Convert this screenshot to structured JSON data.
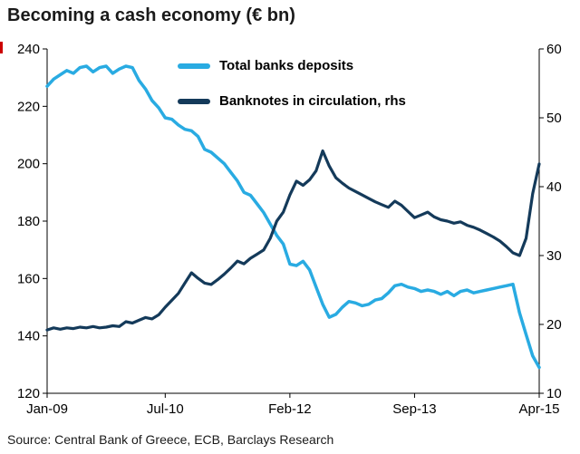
{
  "title": "Becoming a cash economy (€ bn)",
  "source": "Source: Central Bank of Greece, ECB, Barclays Research",
  "colors": {
    "deposits": "#29abe2",
    "banknotes": "#143a5a",
    "axis": "#000000",
    "accent_red": "#cc0000"
  },
  "chart_data": {
    "type": "line",
    "title": "Becoming a cash economy (€ bn)",
    "grid": false,
    "legend_position": "top-center-inside",
    "n_points": 76,
    "x_unit": "month",
    "x_range": [
      "Jan-09",
      "Apr-15"
    ],
    "x_ticks": [
      {
        "index": 0,
        "label": "Jan-09"
      },
      {
        "index": 18,
        "label": "Jul-10"
      },
      {
        "index": 37,
        "label": "Feb-12"
      },
      {
        "index": 56,
        "label": "Sep-13"
      },
      {
        "index": 75,
        "label": "Apr-15"
      }
    ],
    "left_axis": {
      "min": 120,
      "max": 240,
      "step": 20,
      "ticks": [
        120,
        140,
        160,
        180,
        200,
        220,
        240
      ]
    },
    "right_axis": {
      "min": 10,
      "max": 60,
      "step": 10,
      "ticks": [
        10,
        20,
        30,
        40,
        50,
        60
      ]
    },
    "series": [
      {
        "name": "Total banks deposits",
        "axis": "left",
        "color": "#29abe2",
        "values": [
          227,
          229.5,
          231,
          232.5,
          231.5,
          233.5,
          234,
          232,
          233.5,
          234,
          231.5,
          233,
          234,
          233.5,
          229,
          226,
          222,
          219.5,
          216,
          215.5,
          213.5,
          212,
          211.5,
          209.5,
          205,
          204,
          202,
          200,
          197,
          194,
          190,
          189,
          186,
          183,
          179,
          175,
          172,
          165,
          164.5,
          166,
          163,
          157,
          151,
          146.5,
          147.5,
          150,
          152,
          151.5,
          150.5,
          151,
          152.5,
          153,
          155,
          157.5,
          158,
          157,
          156.5,
          155.5,
          156,
          155.5,
          154.5,
          155.5,
          154,
          155.5,
          156,
          155,
          155.5,
          156,
          156.5,
          157,
          157.5,
          158,
          148,
          140.5,
          133,
          129
        ]
      },
      {
        "name": "Banknotes in circulation, rhs",
        "axis": "right",
        "color": "#143a5a",
        "values": [
          19.2,
          19.5,
          19.3,
          19.5,
          19.4,
          19.6,
          19.5,
          19.7,
          19.5,
          19.6,
          19.8,
          19.7,
          20.4,
          20.2,
          20.6,
          21,
          20.8,
          21.4,
          22.5,
          23.5,
          24.5,
          26,
          27.5,
          26.7,
          26,
          25.8,
          26.5,
          27.3,
          28.2,
          29.2,
          28.8,
          29.6,
          30.2,
          30.8,
          32.5,
          35,
          36.3,
          38.8,
          40.8,
          40.2,
          41,
          42.3,
          45.2,
          43,
          41.3,
          40.5,
          39.8,
          39.3,
          38.8,
          38.3,
          37.8,
          37.4,
          37,
          37.9,
          37.3,
          36.4,
          35.5,
          35.9,
          36.3,
          35.6,
          35.2,
          35,
          34.7,
          34.9,
          34.4,
          34.1,
          33.7,
          33.2,
          32.7,
          32.1,
          31.3,
          30.4,
          30,
          32.5,
          39,
          43.3
        ]
      }
    ]
  }
}
